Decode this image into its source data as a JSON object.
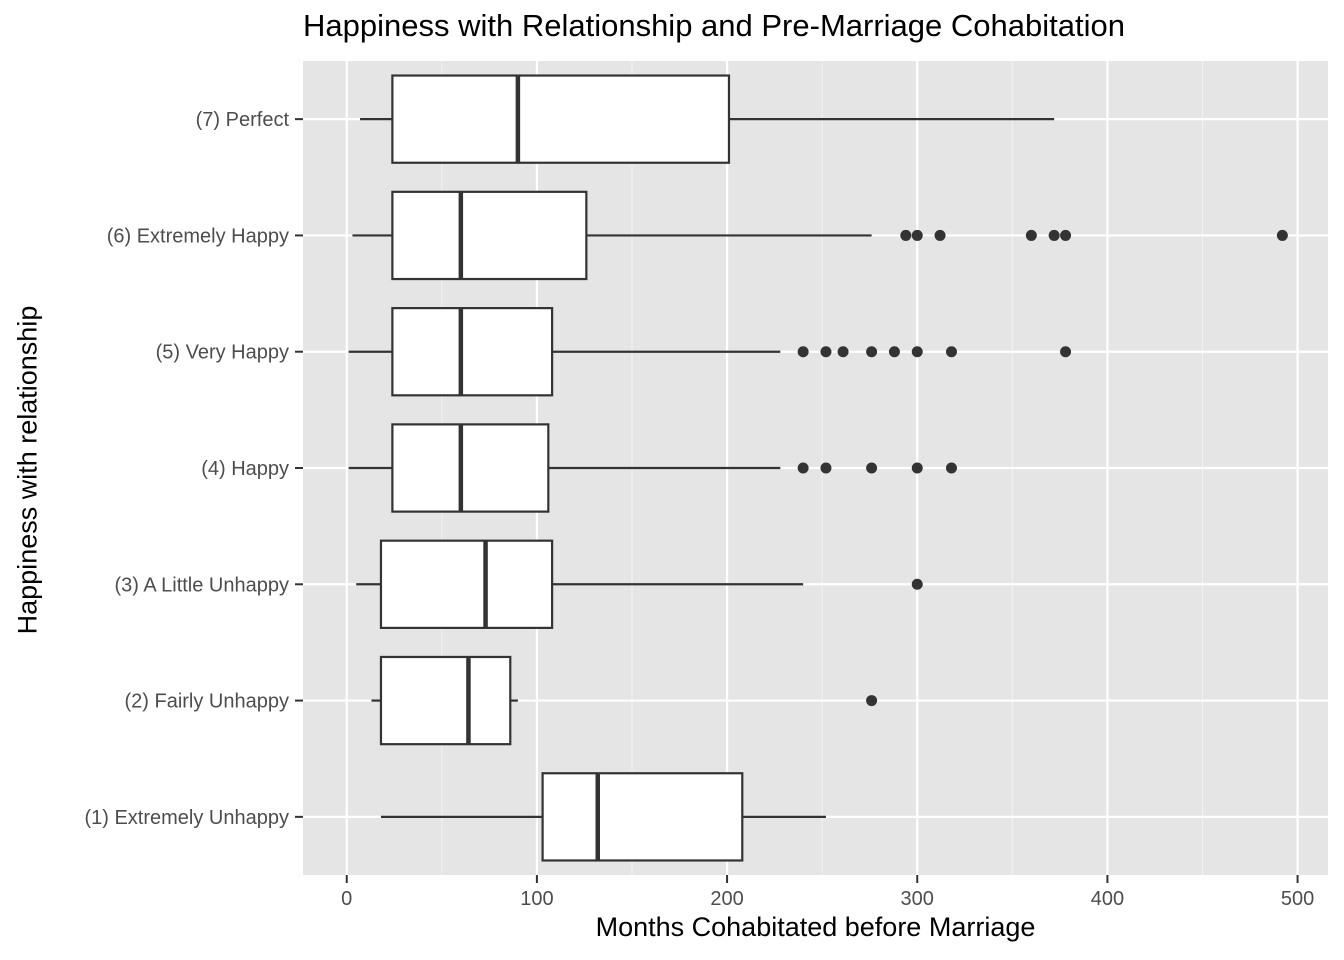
{
  "chart_data": {
    "type": "boxplot",
    "orientation": "horizontal",
    "title": "Happiness with Relationship and Pre-Marriage Cohabitation",
    "xlabel": "Months Cohabitated before Marriage",
    "ylabel": "Happiness with relationship",
    "xlim": [
      -23,
      516
    ],
    "x_ticks": [
      0,
      100,
      200,
      300,
      400,
      500
    ],
    "x_tick_labels": [
      "0",
      "100",
      "200",
      "300",
      "400",
      "500"
    ],
    "grid": true,
    "colors": {
      "panel_background": "#e5e5e5",
      "grid_major": "#ffffff",
      "grid_minor": "#f2f2f2",
      "box_fill": "#ffffff",
      "box_stroke": "#333333",
      "outlier": "#333333",
      "tick_label": "#4d4d4d"
    },
    "categories": [
      "(1) Extremely Unhappy",
      "(2) Fairly Unhappy",
      "(3) A Little Unhappy",
      "(4) Happy",
      "(5) Very Happy",
      "(6) Extremely Happy",
      "(7) Perfect"
    ],
    "boxes": [
      {
        "category": "(1) Extremely Unhappy",
        "whisker_low": 18,
        "q1": 103,
        "median": 132,
        "q3": 208,
        "whisker_high": 252,
        "outliers": []
      },
      {
        "category": "(2) Fairly Unhappy",
        "whisker_low": 13,
        "q1": 18,
        "median": 64,
        "q3": 86,
        "whisker_high": 90,
        "outliers": [
          276
        ]
      },
      {
        "category": "(3) A Little Unhappy",
        "whisker_low": 5,
        "q1": 18,
        "median": 73,
        "q3": 108,
        "whisker_high": 240,
        "outliers": [
          300
        ]
      },
      {
        "category": "(4) Happy",
        "whisker_low": 1,
        "q1": 24,
        "median": 60,
        "q3": 106,
        "whisker_high": 228,
        "outliers": [
          240,
          252,
          276,
          300,
          318
        ]
      },
      {
        "category": "(5) Very Happy",
        "whisker_low": 1,
        "q1": 24,
        "median": 60,
        "q3": 108,
        "whisker_high": 228,
        "outliers": [
          240,
          252,
          261,
          276,
          288,
          300,
          318,
          378
        ]
      },
      {
        "category": "(6) Extremely Happy",
        "whisker_low": 3,
        "q1": 24,
        "median": 60,
        "q3": 126,
        "whisker_high": 276,
        "outliers": [
          294,
          300,
          312,
          360,
          372,
          378,
          492
        ]
      },
      {
        "category": "(7) Perfect",
        "whisker_low": 7,
        "q1": 24,
        "median": 90,
        "q3": 201,
        "whisker_high": 372,
        "outliers": []
      }
    ]
  }
}
